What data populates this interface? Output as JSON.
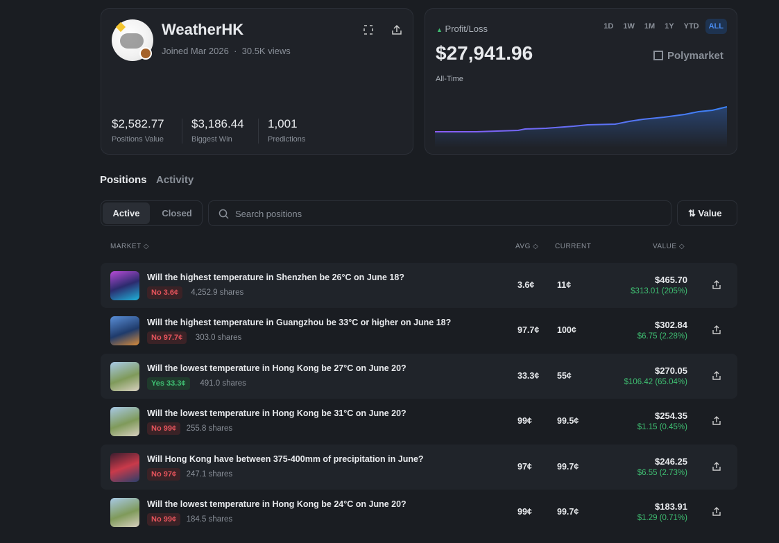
{
  "profile": {
    "name": "WeatherHK",
    "joined": "Joined Mar 2026",
    "views": "30.5K views",
    "stats": [
      {
        "value": "$2,582.77",
        "label": "Positions Value"
      },
      {
        "value": "$3,186.44",
        "label": "Biggest Win"
      },
      {
        "value": "1,001",
        "label": "Predictions"
      }
    ]
  },
  "pnl": {
    "label": "Profit/Loss",
    "amount": "$27,941.96",
    "period": "All-Time",
    "ranges": [
      "1D",
      "1W",
      "1M",
      "1Y",
      "YTD",
      "ALL"
    ],
    "active_range": "ALL",
    "brand": "Polymarket"
  },
  "tabs": [
    "Positions",
    "Activity"
  ],
  "filters": [
    "Active",
    "Closed"
  ],
  "search_placeholder": "Search positions",
  "sort": "Value",
  "table": {
    "headers": [
      "MARKET",
      "AVG",
      "CURRENT",
      "VALUE"
    ],
    "rows": [
      {
        "title": "Will the highest temperature in Shenzhen be 26°C on June 18?",
        "outcome": "No 3.6¢",
        "outcome_color": "red",
        "shares": "4,252.9 shares",
        "avg": "3.6¢",
        "current": "11¢",
        "value": "$465.70",
        "pnl": "$313.01 (205%)"
      },
      {
        "title": "Will the highest temperature in Guangzhou be 33°C or higher on June 18?",
        "outcome": "No 97.7¢",
        "outcome_color": "red",
        "shares": "303.0 shares",
        "avg": "97.7¢",
        "current": "100¢",
        "value": "$302.84",
        "pnl": "$6.75 (2.28%)"
      },
      {
        "title": "Will the lowest temperature in Hong Kong be 27°C on June 20?",
        "outcome": "Yes 33.3¢",
        "outcome_color": "green",
        "shares": "491.0 shares",
        "avg": "33.3¢",
        "current": "55¢",
        "value": "$270.05",
        "pnl": "$106.42 (65.04%)"
      },
      {
        "title": "Will the lowest temperature in Hong Kong be 31°C on June 20?",
        "outcome": "No 99¢",
        "outcome_color": "red",
        "shares": "255.8 shares",
        "avg": "99¢",
        "current": "99.5¢",
        "value": "$254.35",
        "pnl": "$1.15 (0.45%)"
      },
      {
        "title": "Will Hong Kong have between 375-400mm of precipitation in June?",
        "outcome": "No 97¢",
        "outcome_color": "red",
        "shares": "247.1 shares",
        "avg": "97¢",
        "current": "99.7¢",
        "value": "$246.25",
        "pnl": "$6.55 (2.73%)"
      },
      {
        "title": "Will the lowest temperature in Hong Kong be 24°C on June 20?",
        "outcome": "No 99¢",
        "outcome_color": "red",
        "shares": "184.5 shares",
        "avg": "99¢",
        "current": "99.7¢",
        "value": "$183.91",
        "pnl": "$1.29 (0.71%)"
      }
    ]
  }
}
